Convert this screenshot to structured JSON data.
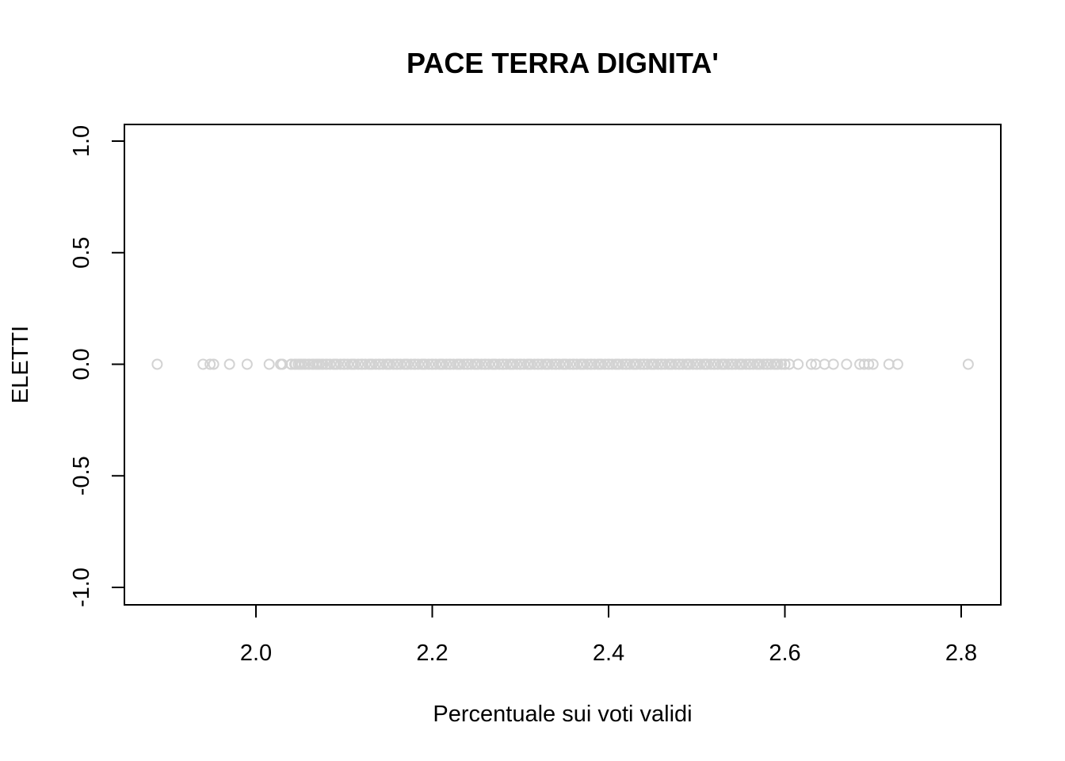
{
  "chart_data": {
    "type": "scatter",
    "title": "PACE TERRA DIGNITA'",
    "xlabel": "Percentuale sui voti validi",
    "ylabel": "ELETTI",
    "xlim": [
      1.85,
      2.85
    ],
    "ylim": [
      -1.0,
      1.0
    ],
    "xticks": [
      2.0,
      2.2,
      2.4,
      2.6,
      2.8
    ],
    "xtick_labels": [
      "2.0",
      "2.2",
      "2.4",
      "2.6",
      "2.8"
    ],
    "yticks": [
      -1.0,
      -0.5,
      0.0,
      0.5,
      1.0
    ],
    "ytick_labels": [
      "-1.0",
      "-0.5",
      "0.0",
      "0.5",
      "1.0"
    ],
    "grid": false,
    "point_color": "#d3d3d3",
    "series": [
      {
        "x": [
          1.888,
          1.94,
          1.948,
          1.952,
          1.97,
          1.99,
          2.015,
          2.028,
          2.03,
          2.04,
          2.045,
          2.05,
          2.055,
          2.06,
          2.065,
          2.07,
          2.075,
          2.08,
          2.09,
          2.1,
          2.11,
          2.12,
          2.13,
          2.14,
          2.15,
          2.16,
          2.17,
          2.18,
          2.19,
          2.2,
          2.21,
          2.22,
          2.23,
          2.24,
          2.25,
          2.26,
          2.27,
          2.28,
          2.29,
          2.3,
          2.31,
          2.32,
          2.33,
          2.34,
          2.35,
          2.36,
          2.37,
          2.38,
          2.39,
          2.4,
          2.41,
          2.42,
          2.43,
          2.44,
          2.45,
          2.46,
          2.47,
          2.48,
          2.49,
          2.5,
          2.51,
          2.52,
          2.53,
          2.54,
          2.55,
          2.56,
          2.57,
          2.58,
          2.59,
          2.6,
          2.605,
          2.615,
          2.63,
          2.635,
          2.645,
          2.655,
          2.67,
          2.685,
          2.69,
          2.695,
          2.7,
          2.718,
          2.728,
          2.808
        ],
        "y": [
          0,
          0,
          0,
          0,
          0,
          0,
          0,
          0,
          0,
          0,
          0,
          0,
          0,
          0,
          0,
          0,
          0,
          0,
          0,
          0,
          0,
          0,
          0,
          0,
          0,
          0,
          0,
          0,
          0,
          0,
          0,
          0,
          0,
          0,
          0,
          0,
          0,
          0,
          0,
          0,
          0,
          0,
          0,
          0,
          0,
          0,
          0,
          0,
          0,
          0,
          0,
          0,
          0,
          0,
          0,
          0,
          0,
          0,
          0,
          0,
          0,
          0,
          0,
          0,
          0,
          0,
          0,
          0,
          0,
          0,
          0,
          0,
          0,
          0,
          0,
          0,
          0,
          0,
          0,
          0,
          0,
          0,
          0,
          0
        ]
      }
    ],
    "dense_band": {
      "x_from": 2.04,
      "x_to": 2.6,
      "y": 0
    }
  }
}
